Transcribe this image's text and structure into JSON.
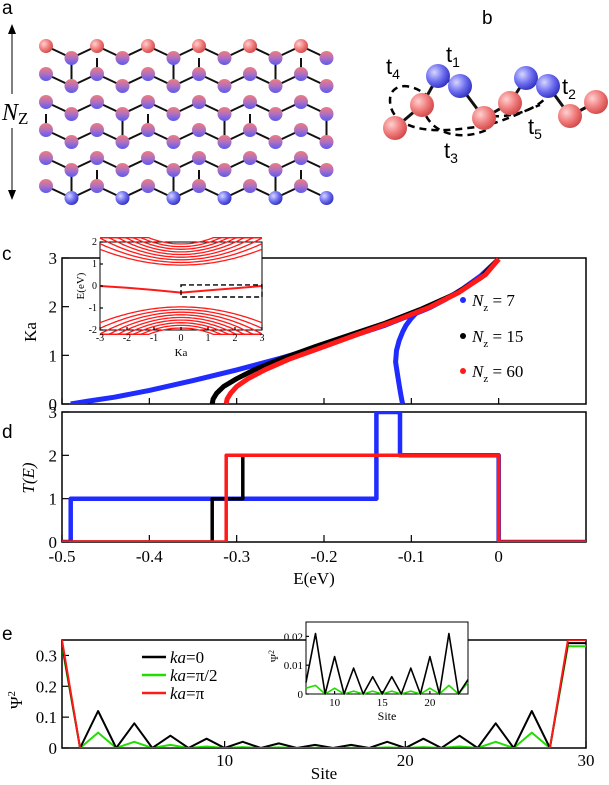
{
  "panel_labels": {
    "a": "a",
    "b": "b",
    "c": "c",
    "d": "d",
    "e": "e"
  },
  "panel_a": {
    "nz_label": "N",
    "nz_sub": "Z"
  },
  "panel_b": {
    "hoppings": [
      {
        "name": "t",
        "sub": "4"
      },
      {
        "name": "t",
        "sub": "1"
      },
      {
        "name": "t",
        "sub": "3"
      },
      {
        "name": "t",
        "sub": "5"
      },
      {
        "name": "t",
        "sub": "2"
      }
    ]
  },
  "colors": {
    "blue": "#1f2bff",
    "black": "#000000",
    "red": "#ff1a1a",
    "green": "#22dd00",
    "atom_red": "#f07c7c",
    "atom_blue": "#6e6ef0"
  },
  "chart_data": [
    {
      "id": "c",
      "type": "line",
      "xlim": [
        -0.5,
        0.1
      ],
      "ylim": [
        0,
        3
      ],
      "ylabel": "Ka",
      "yticks": [
        "0",
        "1",
        "2",
        "3"
      ],
      "legend_position": "right",
      "series": [
        {
          "name_main": "N",
          "name_sub": "z",
          "name_tail": " = 7",
          "color": "#1f2bff",
          "x": [
            -0.49,
            -0.47,
            -0.44,
            -0.4,
            -0.35,
            -0.3,
            -0.25,
            -0.2,
            -0.16,
            -0.13,
            -0.11,
            -0.095,
            -0.08,
            -0.06,
            -0.04,
            -0.02,
            0.0
          ],
          "y": [
            0.0,
            0.06,
            0.14,
            0.28,
            0.48,
            0.7,
            0.94,
            1.2,
            1.44,
            1.62,
            1.76,
            1.86,
            1.97,
            2.16,
            2.38,
            2.64,
            2.98
          ],
          "x2": [
            -0.11,
            -0.112,
            -0.114,
            -0.116,
            -0.118,
            -0.117,
            -0.114,
            -0.11,
            -0.106,
            -0.1,
            -0.095
          ],
          "y2": [
            0.0,
            0.18,
            0.4,
            0.62,
            0.86,
            1.1,
            1.3,
            1.48,
            1.62,
            1.76,
            1.86
          ]
        },
        {
          "name_main": "N",
          "name_sub": "z",
          "name_tail": " = 15",
          "color": "#000000",
          "x": [
            -0.328,
            -0.327,
            -0.323,
            -0.315,
            -0.3,
            -0.28,
            -0.25,
            -0.21,
            -0.17,
            -0.13,
            -0.09,
            -0.05,
            -0.02,
            0.0
          ],
          "y": [
            0.0,
            0.1,
            0.22,
            0.36,
            0.52,
            0.7,
            0.92,
            1.18,
            1.42,
            1.66,
            1.94,
            2.26,
            2.6,
            2.98
          ]
        },
        {
          "name_main": "N",
          "name_sub": "z",
          "name_tail": " = 60",
          "color": "#ff1a1a",
          "x": [
            -0.312,
            -0.311,
            -0.307,
            -0.3,
            -0.287,
            -0.268,
            -0.24,
            -0.2,
            -0.16,
            -0.12,
            -0.08,
            -0.045,
            -0.015,
            0.0
          ],
          "y": [
            0.0,
            0.1,
            0.22,
            0.36,
            0.52,
            0.7,
            0.92,
            1.18,
            1.44,
            1.7,
            1.98,
            2.3,
            2.66,
            2.98
          ]
        }
      ],
      "inset": {
        "xlim": [
          -3,
          3
        ],
        "ylim": [
          -2,
          2
        ],
        "xlabel": "Ka",
        "ylabel": "E(eV)",
        "xticks": [
          "-3",
          "-2",
          "-1",
          "0",
          "1",
          "2",
          "3"
        ],
        "yticks": [
          "-2",
          "-1",
          "0",
          "1",
          "2"
        ],
        "edge_state": {
          "x": [
            -3,
            -2,
            -1,
            0,
            1,
            2,
            3
          ],
          "y": [
            0.0,
            -0.08,
            -0.18,
            -0.3,
            -0.2,
            -0.1,
            0.0
          ]
        },
        "box": {
          "x": [
            0,
            3
          ],
          "y": [
            -0.5,
            0.05
          ]
        }
      }
    },
    {
      "id": "d",
      "type": "line",
      "xlim": [
        -0.5,
        0.1
      ],
      "ylim": [
        0,
        3
      ],
      "xlabel": "E(eV)",
      "ylabel": "T(E)",
      "xticks": [
        "-0.5",
        "-0.4",
        "-0.3",
        "-0.2",
        "-0.1",
        "0"
      ],
      "yticks": [
        "0",
        "1",
        "2",
        "3"
      ],
      "series": [
        {
          "name": "Nz = 7",
          "color": "#1f2bff",
          "x": [
            -0.5,
            -0.49,
            -0.49,
            -0.14,
            -0.14,
            -0.113,
            -0.113,
            0.0,
            0.0,
            0.1
          ],
          "y": [
            0,
            0,
            1,
            1,
            3,
            3,
            2,
            2,
            0,
            0
          ]
        },
        {
          "name": "Nz = 15",
          "color": "#000000",
          "x": [
            -0.5,
            -0.328,
            -0.328,
            -0.293,
            -0.293,
            0.0,
            0.0,
            0.1
          ],
          "y": [
            0,
            0,
            1,
            1,
            2,
            2,
            0,
            0
          ]
        },
        {
          "name": "Nz = 60",
          "color": "#ff1a1a",
          "x": [
            -0.5,
            -0.312,
            -0.312,
            0.0,
            0.0,
            0.1
          ],
          "y": [
            0,
            0,
            2,
            2,
            0,
            0
          ]
        }
      ]
    },
    {
      "id": "e",
      "type": "line",
      "xlim": [
        1,
        30
      ],
      "ylim": [
        0,
        0.35
      ],
      "xlabel": "Site",
      "ylabel": "Ψ",
      "ylabel_sup": "2",
      "xticks": [
        "10",
        "20",
        "30"
      ],
      "yticks": [
        "0",
        "0.1",
        "0.2",
        "0.3"
      ],
      "legend_position": "top-left",
      "series": [
        {
          "name_main": "ka",
          "name_tail": "=0",
          "color": "#000000",
          "x": [
            1,
            2,
            3,
            4,
            5,
            6,
            7,
            8,
            9,
            10,
            11,
            12,
            13,
            14,
            15,
            16,
            17,
            18,
            19,
            20,
            21,
            22,
            23,
            24,
            25,
            26,
            27,
            28,
            29,
            30
          ],
          "y": [
            0.34,
            0.0,
            0.12,
            0.0,
            0.08,
            0.0,
            0.04,
            0.0,
            0.03,
            0.0,
            0.02,
            0.0,
            0.015,
            0.0,
            0.01,
            0.0,
            0.01,
            0.0,
            0.02,
            0.0,
            0.03,
            0.0,
            0.04,
            0.0,
            0.08,
            0.0,
            0.12,
            0.0,
            0.34,
            0.34
          ]
        },
        {
          "name_main": "ka",
          "name_tail": "=π/2",
          "color": "#22dd00",
          "x": [
            1,
            2,
            3,
            4,
            5,
            6,
            7,
            8,
            9,
            10,
            11,
            12,
            13,
            14,
            15,
            16,
            17,
            18,
            19,
            20,
            21,
            22,
            23,
            24,
            25,
            26,
            27,
            28,
            29,
            30
          ],
          "y": [
            0.33,
            0.0,
            0.05,
            0.0,
            0.02,
            0.0,
            0.01,
            0.0,
            0.005,
            0.0,
            0.003,
            0.0,
            0.002,
            0.0,
            0.001,
            0.0,
            0.001,
            0.0,
            0.002,
            0.0,
            0.003,
            0.0,
            0.005,
            0.0,
            0.02,
            0.0,
            0.05,
            0.0,
            0.33,
            0.33
          ]
        },
        {
          "name_main": "ka",
          "name_tail": "=π",
          "color": "#ff1a1a",
          "x": [
            1,
            2,
            3,
            28,
            29,
            30
          ],
          "y": [
            0.35,
            0.0,
            0.0,
            0.0,
            0.35,
            0.35
          ]
        }
      ],
      "inset": {
        "xlim": [
          7,
          24
        ],
        "ylim": [
          0,
          0.025
        ],
        "xlabel": "Site",
        "ylabel": "Ψ",
        "ylabel_sup": "2",
        "xticks": [
          "10",
          "15",
          "20"
        ],
        "yticks": [
          "0",
          "0.01",
          "0.02"
        ],
        "black": {
          "x": [
            7,
            8,
            9,
            10,
            11,
            12,
            13,
            14,
            15,
            16,
            17,
            18,
            19,
            20,
            21,
            22,
            23,
            24
          ],
          "y": [
            0.004,
            0.021,
            0.0,
            0.013,
            0.0,
            0.009,
            0.0,
            0.006,
            0.0,
            0.006,
            0.0,
            0.009,
            0.0,
            0.013,
            0.0,
            0.021,
            0.0,
            0.005
          ]
        },
        "green": {
          "x": [
            7,
            8,
            9,
            10,
            11,
            12,
            13,
            14,
            15,
            16,
            17,
            18,
            19,
            20,
            21,
            22,
            23,
            24
          ],
          "y": [
            0.002,
            0.003,
            0.0,
            0.002,
            0.0,
            0.001,
            0.0,
            0.001,
            0.0,
            0.001,
            0.0,
            0.001,
            0.0,
            0.002,
            0.0,
            0.003,
            0.0,
            0.004
          ]
        }
      }
    }
  ]
}
